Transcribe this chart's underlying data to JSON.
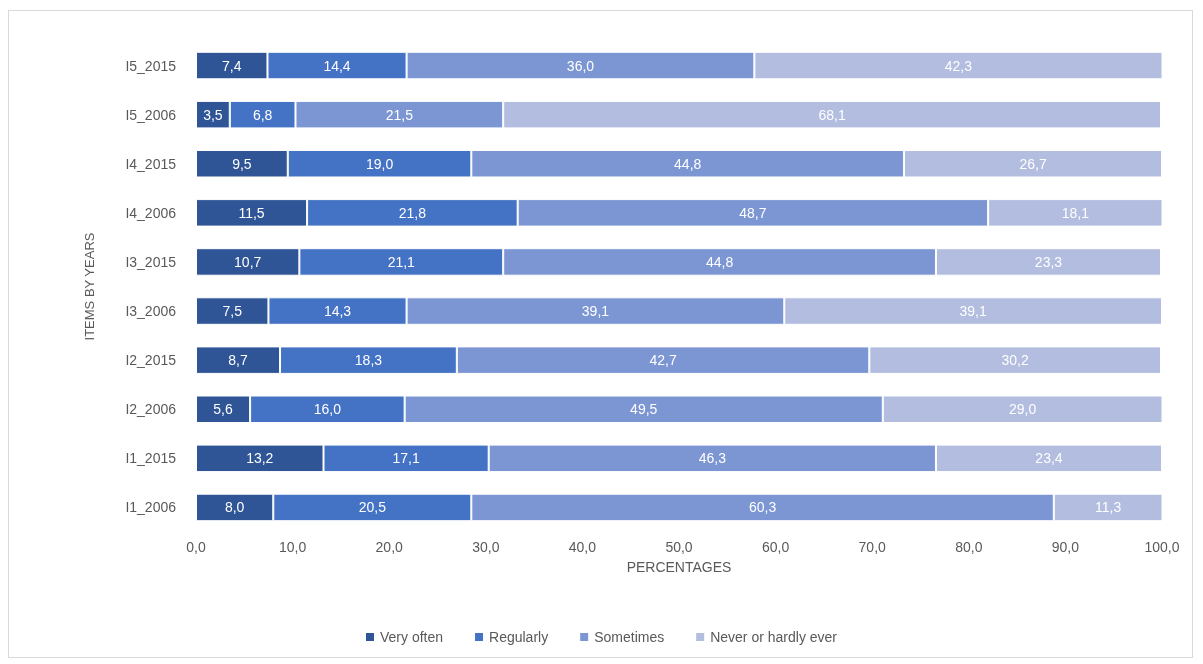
{
  "chart_data": {
    "type": "bar",
    "orientation": "horizontal",
    "stacked": true,
    "xlabel": "PERCENTAGES",
    "ylabel": "ITEMS BY YEARS",
    "categories": [
      "I5_2015",
      "I5_2006",
      "I4_2015",
      "I4_2006",
      "I3_2015",
      "I3_2006",
      "I2_2015",
      "I2_2006",
      "I1_2015",
      "I1_2006"
    ],
    "series": [
      {
        "name": "Very often",
        "color": "#2f5597",
        "values": [
          7.4,
          3.5,
          9.5,
          11.5,
          10.7,
          7.5,
          8.7,
          5.6,
          13.2,
          8.0
        ],
        "value_labels": [
          "7,4",
          "3,5",
          "9,5",
          "11,5",
          "10,7",
          "7,5",
          "8,7",
          "5,6",
          "13,2",
          "8,0"
        ]
      },
      {
        "name": "Regularly",
        "color": "#4472c4",
        "values": [
          14.4,
          6.8,
          19.0,
          21.8,
          21.1,
          14.3,
          18.3,
          16.0,
          17.1,
          20.5
        ],
        "value_labels": [
          "14,4",
          "6,8",
          "19,0",
          "21,8",
          "21,1",
          "14,3",
          "18,3",
          "16,0",
          "17,1",
          "20,5"
        ]
      },
      {
        "name": "Sometimes",
        "color": "#7c96d4",
        "values": [
          36.0,
          21.5,
          44.8,
          48.7,
          44.8,
          39.1,
          42.7,
          49.5,
          46.3,
          60.3
        ],
        "value_labels": [
          "36,0",
          "21,5",
          "44,8",
          "48,7",
          "44,8",
          "39,1",
          "42,7",
          "49,5",
          "46,3",
          "60,3"
        ]
      },
      {
        "name": "Never or hardly ever",
        "color": "#b2bde0",
        "values": [
          42.3,
          68.1,
          26.7,
          18.1,
          23.3,
          39.1,
          30.2,
          29.0,
          23.4,
          11.3
        ],
        "value_labels": [
          "42,3",
          "68,1",
          "26,7",
          "18,1",
          "23,3",
          "39,1",
          "30,2",
          "29,0",
          "23,4",
          "11,3"
        ]
      }
    ],
    "xlim": [
      0,
      100
    ],
    "xticks": [
      {
        "value": 0,
        "label": "0,0"
      },
      {
        "value": 10,
        "label": "10,0"
      },
      {
        "value": 20,
        "label": "20,0"
      },
      {
        "value": 30,
        "label": "30,0"
      },
      {
        "value": 40,
        "label": "40,0"
      },
      {
        "value": 50,
        "label": "50,0"
      },
      {
        "value": 60,
        "label": "60,0"
      },
      {
        "value": 70,
        "label": "70,0"
      },
      {
        "value": 80,
        "label": "80,0"
      },
      {
        "value": 90,
        "label": "90,0"
      },
      {
        "value": 100,
        "label": "100,0"
      }
    ],
    "grid": false,
    "legend": "bottom"
  }
}
